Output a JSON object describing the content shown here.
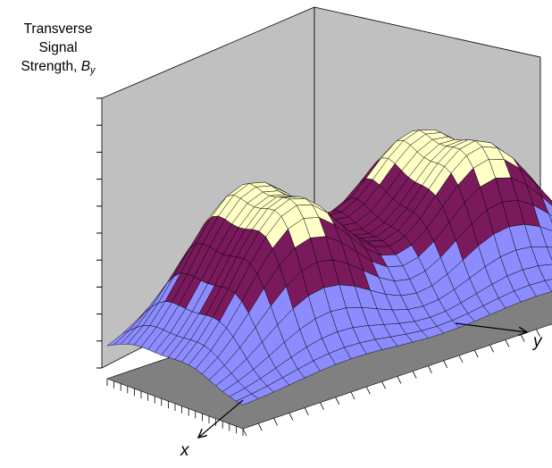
{
  "chart_data": {
    "type": "surface",
    "ylabel_parts": {
      "line1": "Transverse",
      "line2": "Signal",
      "line3_text": "Strength, ",
      "symbol": "B",
      "subscript": "y"
    },
    "xlabel": "x",
    "axis_y_label": "y",
    "grid": true,
    "x": {
      "count": 21,
      "range": [
        0,
        20
      ]
    },
    "y": {
      "count": 29,
      "range": [
        0,
        28
      ]
    },
    "surface": {
      "baseline": 0.1,
      "peaks": [
        {
          "x": 4,
          "y": 7,
          "height": 0.9
        },
        {
          "x": 12,
          "y": 7,
          "height": 0.9
        },
        {
          "x": 4,
          "y": 18,
          "height": 0.88
        },
        {
          "x": 12,
          "y": 19,
          "height": 0.88
        }
      ],
      "peak_width": 3.6
    },
    "color_bands": [
      {
        "min": 0.0,
        "max": 0.5,
        "color": "#8c8cff"
      },
      {
        "min": 0.5,
        "max": 0.8,
        "color": "#7a1a5c"
      },
      {
        "min": 0.8,
        "max": 1.0,
        "color": "#ffffc6"
      }
    ],
    "wall_color": "#c0c0c0",
    "floor_color": "#808080"
  }
}
